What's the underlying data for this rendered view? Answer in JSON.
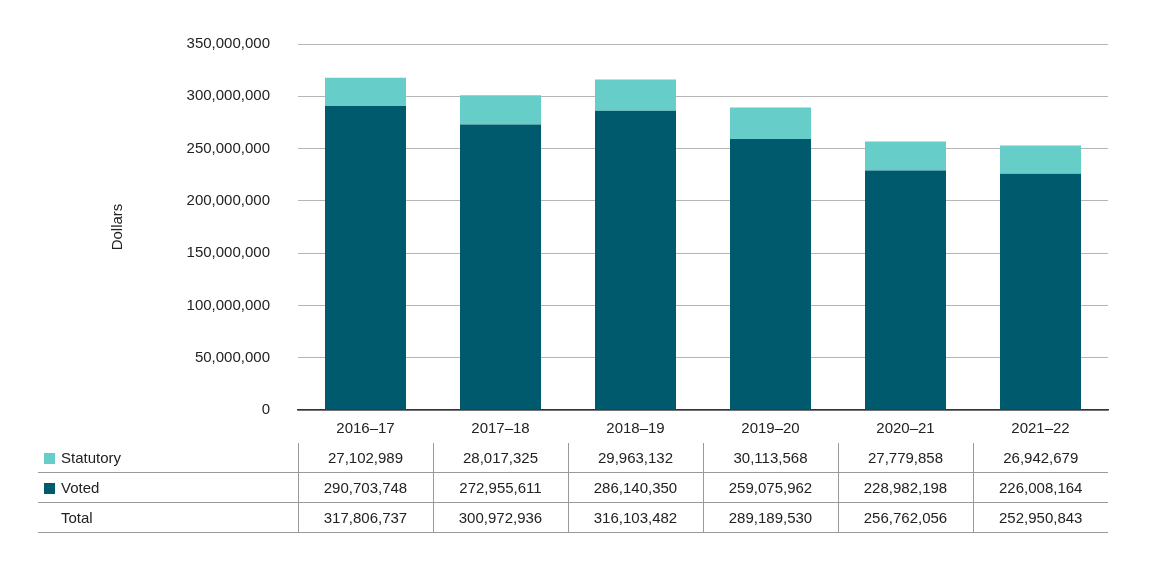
{
  "chart_data": {
    "type": "bar",
    "stacked": true,
    "grid": true,
    "y_label": "Dollars",
    "categories": [
      "2016–17",
      "2017–18",
      "2018–19",
      "2019–20",
      "2020–21",
      "2021–22"
    ],
    "series": [
      {
        "name": "Statutory",
        "color": "#66cdc8",
        "values": [
          27102989,
          28017325,
          29963132,
          30113568,
          27779858,
          26942679
        ],
        "value_labels": [
          "27,102,989",
          "28,017,325",
          "29,963,132",
          "30,113,568",
          "27,779,858",
          "26,942,679"
        ]
      },
      {
        "name": "Voted",
        "color": "#005a6e",
        "values": [
          290703748,
          272955611,
          286140350,
          259075962,
          228982198,
          226008164
        ],
        "value_labels": [
          "290,703,748",
          "272,955,611",
          "286,140,350",
          "259,075,962",
          "228,982,198",
          "226,008,164"
        ]
      }
    ],
    "total": {
      "name": "Total",
      "value_labels": [
        "317,806,737",
        "300,972,936",
        "316,103,482",
        "289,189,530",
        "256,762,056",
        "252,950,843"
      ]
    },
    "ylim": [
      0,
      350000000
    ],
    "yticks": [
      0,
      {
        "value": 50000000,
        "label": "50,000,000"
      },
      {
        "value": 100000000,
        "label": "100,000,000"
      },
      {
        "value": 150000000,
        "label": "150,000,000"
      },
      {
        "value": 200000000,
        "label": "200,000,000"
      },
      {
        "value": 250000000,
        "label": "250,000,000"
      },
      {
        "value": 300000000,
        "label": "300,000,000"
      },
      {
        "value": 350000000,
        "label": "350,000,000"
      }
    ]
  }
}
